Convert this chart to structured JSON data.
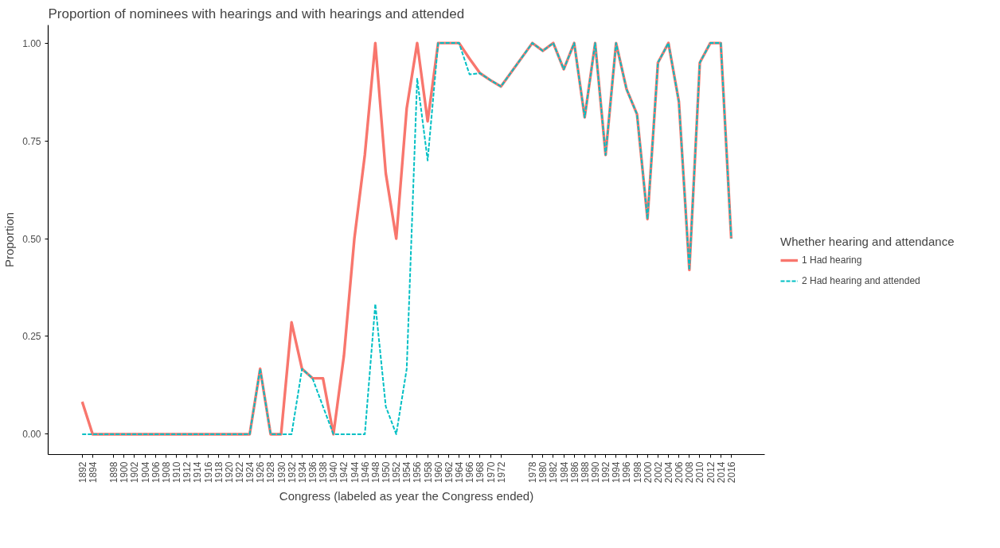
{
  "chart_data": {
    "type": "line",
    "title": "Proportion of nominees with hearings and with hearings and attended",
    "xlabel": "Congress (labeled as year the Congress ended)",
    "ylabel": "Proportion",
    "legend_title": "Whether hearing and attendance",
    "legend": "right",
    "grid": false,
    "x": [
      1892,
      1894,
      1898,
      1900,
      1902,
      1904,
      1906,
      1908,
      1910,
      1912,
      1914,
      1916,
      1918,
      1920,
      1922,
      1924,
      1926,
      1928,
      1930,
      1932,
      1934,
      1936,
      1938,
      1940,
      1942,
      1944,
      1946,
      1948,
      1950,
      1952,
      1954,
      1956,
      1958,
      1960,
      1962,
      1964,
      1966,
      1968,
      1970,
      1972,
      1978,
      1980,
      1982,
      1984,
      1986,
      1988,
      1990,
      1992,
      1994,
      1996,
      1998,
      2000,
      2002,
      2004,
      2006,
      2008,
      2010,
      2012,
      2014,
      2016
    ],
    "xlim": [
      1885.5,
      2022.4
    ],
    "xticks": [
      1892,
      1894,
      1898,
      1900,
      1902,
      1904,
      1906,
      1908,
      1910,
      1912,
      1914,
      1916,
      1918,
      1920,
      1922,
      1924,
      1926,
      1928,
      1930,
      1932,
      1934,
      1936,
      1938,
      1940,
      1942,
      1944,
      1946,
      1948,
      1950,
      1952,
      1954,
      1956,
      1958,
      1960,
      1962,
      1964,
      1966,
      1968,
      1970,
      1972,
      1978,
      1980,
      1982,
      1984,
      1986,
      1988,
      1990,
      1992,
      1994,
      1996,
      1998,
      2000,
      2002,
      2004,
      2006,
      2008,
      2010,
      2012,
      2014,
      2016
    ],
    "ylim": [
      -0.052,
      1.046
    ],
    "yticks": [
      {
        "value": 0,
        "label": "0.00"
      },
      {
        "value": 0.25,
        "label": "0.25"
      },
      {
        "value": 0.5,
        "label": "0.50"
      },
      {
        "value": 0.75,
        "label": "0.75"
      },
      {
        "value": 1,
        "label": "1.00"
      }
    ],
    "series": [
      {
        "name": "1 Had hearing",
        "color": "#f8766d",
        "line_style": "solid",
        "values": [
          0.083,
          0,
          0,
          0,
          0,
          0,
          0,
          0,
          0,
          0,
          0,
          0,
          0,
          0,
          0,
          0,
          0.167,
          0,
          0,
          0.286,
          0.167,
          0.143,
          0.143,
          0,
          0.2,
          0.5,
          0.714,
          1,
          0.667,
          0.5,
          0.833,
          1,
          0.8,
          1,
          1,
          1,
          0.96,
          0.923,
          0.905,
          0.889,
          1,
          0.98,
          1,
          0.933,
          1,
          0.81,
          1,
          0.714,
          1,
          0.882,
          0.818,
          0.55,
          0.95,
          1,
          0.85,
          0.42,
          0.95,
          1,
          1,
          0.5
        ]
      },
      {
        "name": "2 Had hearing and attended",
        "color": "#00bfc4",
        "line_style": "dashed",
        "values": [
          0,
          0,
          0,
          0,
          0,
          0,
          0,
          0,
          0,
          0,
          0,
          0,
          0,
          0,
          0,
          0,
          0.167,
          0,
          0,
          0,
          0.167,
          0.143,
          0.071,
          0,
          0,
          0,
          0,
          0.333,
          0.071,
          0,
          0.167,
          0.909,
          0.7,
          1,
          1,
          1,
          0.92,
          0.923,
          0.905,
          0.889,
          1,
          0.98,
          1,
          0.933,
          1,
          0.81,
          1,
          0.714,
          1,
          0.882,
          0.818,
          0.55,
          0.95,
          1,
          0.85,
          0.42,
          0.95,
          1,
          1,
          0.5
        ]
      }
    ]
  }
}
